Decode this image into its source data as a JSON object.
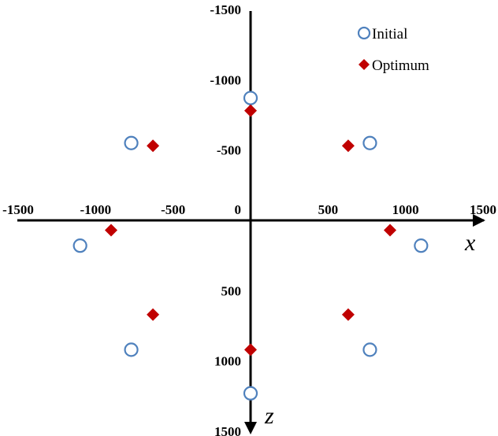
{
  "chart_data": {
    "type": "scatter",
    "title": "",
    "xlabel": "x",
    "ylabel": "z",
    "xlim": [
      -1500,
      1500
    ],
    "zlim": [
      -1500,
      1500
    ],
    "z_axis_direction": "down",
    "grid": false,
    "legend_position": "top-right",
    "x_tick_labels": [
      "-1500",
      "-1000",
      "-500",
      "0",
      "500",
      "1000",
      "1500"
    ],
    "z_tick_labels": [
      "-1500",
      "-1000",
      "-500",
      "500",
      "1000",
      "1500"
    ],
    "x_ticks": [
      -1500,
      -1000,
      -500,
      0,
      500,
      1000,
      1500
    ],
    "z_ticks": [
      -1500,
      -1000,
      -500,
      500,
      1000,
      1500
    ],
    "series": [
      {
        "name": "Initial",
        "marker": "open-circle",
        "color": "#4f81bd",
        "points": [
          {
            "x": 0,
            "z": -870
          },
          {
            "x": -770,
            "z": -550
          },
          {
            "x": 770,
            "z": -550
          },
          {
            "x": -1100,
            "z": 180
          },
          {
            "x": 1100,
            "z": 180
          },
          {
            "x": -770,
            "z": 920
          },
          {
            "x": 770,
            "z": 920
          },
          {
            "x": 0,
            "z": 1230
          }
        ]
      },
      {
        "name": "Optimum",
        "marker": "filled-diamond",
        "color": "#c00000",
        "points": [
          {
            "x": 0,
            "z": -780
          },
          {
            "x": -630,
            "z": -530
          },
          {
            "x": 630,
            "z": -530
          },
          {
            "x": -900,
            "z": 70
          },
          {
            "x": 900,
            "z": 70
          },
          {
            "x": -630,
            "z": 670
          },
          {
            "x": 630,
            "z": 670
          },
          {
            "x": 0,
            "z": 920
          }
        ]
      }
    ]
  }
}
